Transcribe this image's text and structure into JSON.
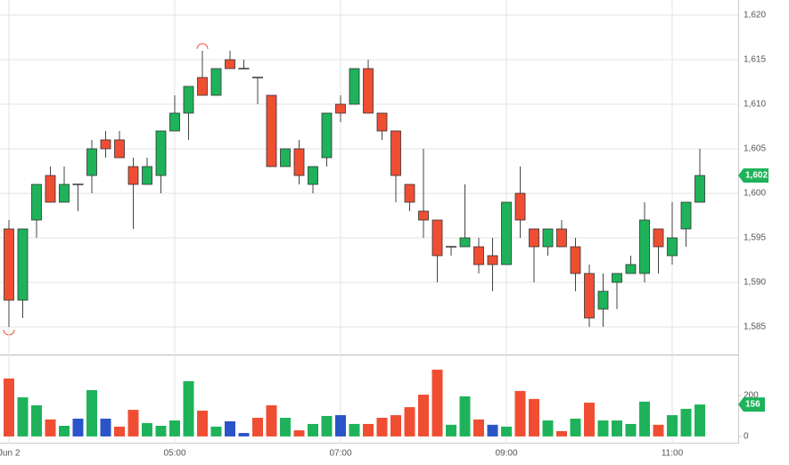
{
  "chart_data": {
    "type": "candlestick",
    "categories": [
      "Jun 2",
      null,
      null,
      null,
      null,
      null,
      null,
      null,
      null,
      null,
      null,
      null,
      "05:00",
      null,
      null,
      null,
      null,
      null,
      null,
      null,
      null,
      null,
      null,
      null,
      "07:00",
      null,
      null,
      null,
      null,
      null,
      null,
      null,
      null,
      null,
      null,
      null,
      "09:00",
      null,
      null,
      null,
      null,
      null,
      null,
      null,
      null,
      null,
      null,
      null,
      "11:00",
      null,
      null
    ],
    "open": [
      1596,
      1588,
      1597,
      1602,
      1599,
      1601,
      1602,
      1606,
      1606,
      1603,
      1601,
      1602,
      1607,
      1609,
      1613,
      1611,
      1615,
      1614,
      1613,
      1611,
      1603,
      1605,
      1601,
      1604,
      1610,
      1610,
      1614,
      1609,
      1607,
      1601,
      1598,
      1597,
      1594,
      1594,
      1594,
      1593,
      1592,
      1600,
      1596,
      1594,
      1596,
      1594,
      1591,
      1587,
      1590,
      1591,
      1591,
      1596,
      1593,
      1596,
      1599
    ],
    "high": [
      1597,
      1596,
      1601,
      1603,
      1603,
      1601,
      1606,
      1607,
      1607,
      1604,
      1604,
      1607,
      1611,
      1612,
      1616,
      1614,
      1616,
      1615,
      1613,
      1611,
      1605,
      1606,
      1603,
      1609,
      1611,
      1614,
      1615,
      1609,
      1607,
      1601,
      1605,
      1597,
      1594,
      1601,
      1595,
      1595,
      1599,
      1603,
      1596,
      1596,
      1597,
      1595,
      1592,
      1591,
      1591,
      1593,
      1599,
      1596,
      1599,
      1599,
      1605
    ],
    "low": [
      1585,
      1586,
      1595,
      1599,
      1599,
      1598,
      1600,
      1604,
      1604,
      1596,
      1601,
      1600,
      1607,
      1606,
      1611,
      1611,
      1614,
      1614,
      1610,
      1603,
      1603,
      1601,
      1600,
      1603,
      1608,
      1610,
      1609,
      1606,
      1599,
      1598,
      1595,
      1590,
      1593,
      1594,
      1591,
      1589,
      1592,
      1595,
      1590,
      1593,
      1594,
      1589,
      1585,
      1585,
      1587,
      1591,
      1590,
      1591,
      1592,
      1594,
      1599
    ],
    "close": [
      1588,
      1596,
      1601,
      1599,
      1601,
      1601,
      1605,
      1605,
      1604,
      1601,
      1603,
      1607,
      1609,
      1612,
      1611,
      1614,
      1614,
      1614,
      1613,
      1603,
      1605,
      1602,
      1603,
      1609,
      1609,
      1614,
      1609,
      1607,
      1602,
      1599,
      1597,
      1593,
      1594,
      1595,
      1592,
      1592,
      1599,
      1597,
      1594,
      1596,
      1594,
      1591,
      1586,
      1589,
      1591,
      1592,
      1597,
      1594,
      1595,
      1599,
      1602
    ],
    "up_color": "#1eb35a",
    "down_color": "#f04e33",
    "last_close_label": "1,602",
    "ylim": [
      1581.9,
      1621.7
    ],
    "yticks": [
      {
        "value": 1585,
        "label": "1,585"
      },
      {
        "value": 1590,
        "label": "1,590"
      },
      {
        "value": 1595,
        "label": "1,595"
      },
      {
        "value": 1600,
        "label": "1,600"
      },
      {
        "value": 1605,
        "label": "1,605"
      },
      {
        "value": 1610,
        "label": "1,610"
      },
      {
        "value": 1615,
        "label": "1,615"
      },
      {
        "value": 1620,
        "label": "1,620"
      }
    ],
    "grid": true,
    "volume": {
      "values": [
        283,
        191,
        152,
        83,
        52,
        87,
        226,
        87,
        48,
        130,
        65,
        52,
        78,
        270,
        126,
        48,
        74,
        17,
        91,
        152,
        91,
        30,
        61,
        100,
        104,
        61,
        61,
        91,
        104,
        143,
        204,
        326,
        57,
        196,
        83,
        57,
        48,
        222,
        183,
        78,
        26,
        87,
        165,
        78,
        78,
        61,
        170,
        57,
        104,
        135,
        156
      ],
      "colors": [
        "#f04e33",
        "#1eb35a",
        "#1eb35a",
        "#f04e33",
        "#1eb35a",
        "#2a55c8",
        "#1eb35a",
        "#2a55c8",
        "#f04e33",
        "#f04e33",
        "#1eb35a",
        "#1eb35a",
        "#1eb35a",
        "#1eb35a",
        "#f04e33",
        "#1eb35a",
        "#2a55c8",
        "#2a55c8",
        "#f04e33",
        "#f04e33",
        "#1eb35a",
        "#f04e33",
        "#1eb35a",
        "#1eb35a",
        "#2a55c8",
        "#1eb35a",
        "#f04e33",
        "#f04e33",
        "#f04e33",
        "#f04e33",
        "#f04e33",
        "#f04e33",
        "#1eb35a",
        "#1eb35a",
        "#f04e33",
        "#2a55c8",
        "#1eb35a",
        "#f04e33",
        "#f04e33",
        "#1eb35a",
        "#f04e33",
        "#1eb35a",
        "#f04e33",
        "#1eb35a",
        "#1eb35a",
        "#1eb35a",
        "#1eb35a",
        "#f04e33",
        "#1eb35a",
        "#1eb35a",
        "#1eb35a"
      ],
      "ylim": [
        -35,
        400
      ],
      "yticks": [
        0,
        200
      ]
    }
  }
}
